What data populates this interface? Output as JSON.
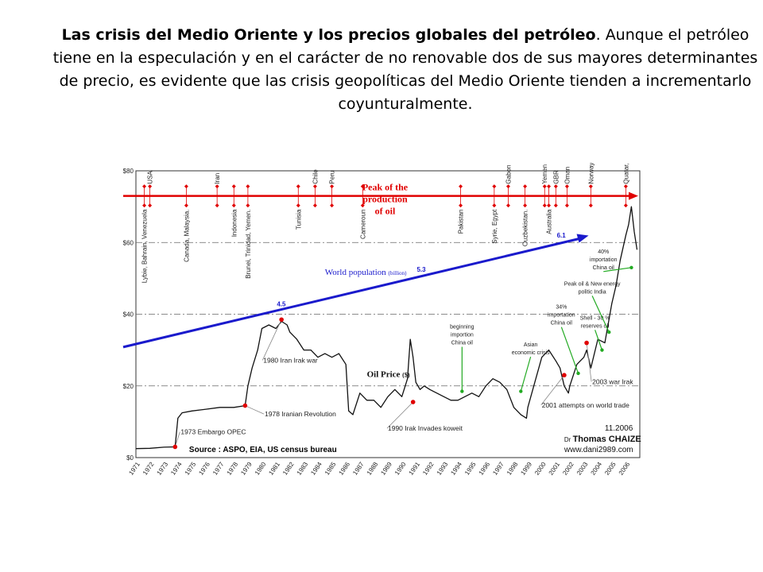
{
  "caption": {
    "bold": "Las crisis del Medio Oriente y los precios globales del petróleo",
    "rest": ". Aunque el petróleo tiene en la especulación y en el carácter de no renovable dos de sus mayores determinantes de precio, es evidente que las crisis geopolíticas del Medio Oriente tienden a incrementarlo coyunturalmente."
  },
  "chart_data": {
    "type": "line",
    "ylim": [
      0,
      80
    ],
    "xlim": [
      1971,
      2007
    ],
    "y_ticks": [
      "$0",
      "$20",
      "$40",
      "$60",
      "$80"
    ],
    "x_ticks": [
      "1971",
      "1972",
      "1973",
      "1974",
      "1975",
      "1976",
      "1977",
      "1978",
      "1979",
      "1980",
      "1981",
      "1982",
      "1983",
      "1984",
      "1985",
      "1986",
      "1987",
      "1988",
      "1989",
      "1990",
      "1991",
      "1992",
      "1993",
      "1994",
      "1995",
      "1996",
      "1997",
      "1998",
      "1999",
      "2000",
      "2001",
      "2002",
      "2003",
      "2004",
      "2005",
      "2006"
    ],
    "grid": "dashed horizontal at $20, $40, $60",
    "colors": {
      "price": "#111111",
      "population": "#1a1acc",
      "peak": "#e00000",
      "event": "#e00000",
      "green": "#22aa22"
    },
    "series": [
      {
        "name": "Oil Price",
        "unit": "($)",
        "x": [
          1971,
          1972,
          1973,
          1973.8,
          1974,
          1974.3,
          1975,
          1976,
          1977,
          1978,
          1978.8,
          1979,
          1979.3,
          1979.7,
          1980,
          1980.5,
          1981,
          1981.4,
          1981.8,
          1982,
          1982.5,
          1983,
          1983.5,
          1984,
          1984.5,
          1985,
          1985.5,
          1986,
          1986.2,
          1986.5,
          1987,
          1987.5,
          1988,
          1988.5,
          1989,
          1989.5,
          1990,
          1990.4,
          1990.6,
          1990.8,
          1991,
          1991.3,
          1991.6,
          1992,
          1992.5,
          1993,
          1993.5,
          1994,
          1994.5,
          1995,
          1995.5,
          1996,
          1996.5,
          1997,
          1997.5,
          1998,
          1998.5,
          1998.9,
          1999,
          1999.5,
          2000,
          2000.5,
          2001,
          2001.3,
          2001.6,
          2001.9,
          2002,
          2002.5,
          2003,
          2003.2,
          2003.5,
          2004,
          2004.5,
          2005,
          2005.3,
          2005.6,
          2006,
          2006.2,
          2006.4,
          2006.6,
          2006.8
        ],
        "y": [
          2.5,
          2.6,
          2.9,
          3.0,
          11,
          12.5,
          13,
          13.5,
          14,
          14,
          14.5,
          20,
          25,
          30,
          36,
          37,
          36,
          38,
          37,
          35,
          33,
          30,
          30,
          28,
          29,
          28,
          29,
          26,
          13,
          12,
          18,
          16,
          16,
          14,
          17,
          19,
          17,
          22,
          33,
          28,
          21,
          19,
          20,
          19,
          18,
          17,
          16,
          16,
          17,
          18,
          17,
          20,
          22,
          21,
          19,
          14,
          12,
          11,
          14,
          21,
          28,
          30,
          27,
          25,
          20,
          18,
          20,
          26,
          28,
          30,
          25,
          33,
          32,
          43,
          48,
          55,
          62,
          65,
          70,
          63,
          58
        ]
      },
      {
        "name": "World population",
        "unit": "(billion)",
        "x": [
          1971,
          1981.5,
          1991.5,
          2001.5,
          2003
        ],
        "y": [
          31.5,
          39.8,
          50.5,
          59.8,
          61.5
        ],
        "labels": [
          {
            "x": 1981.5,
            "text": "4.5"
          },
          {
            "x": 1991.5,
            "text": "5.3"
          },
          {
            "x": 2001.5,
            "text": "6.1"
          }
        ]
      }
    ],
    "peak_line": {
      "y": 73,
      "label": [
        "Peak of the",
        "production",
        "of oil"
      ]
    },
    "countries_top": [
      {
        "x": 1972,
        "text": "USA"
      },
      {
        "x": 1976.8,
        "text": "Iran"
      },
      {
        "x": 1983.8,
        "text": "Chile"
      },
      {
        "x": 1985,
        "text": "Peru"
      },
      {
        "x": 1997.6,
        "text": "Gabon"
      },
      {
        "x": 2000.2,
        "text": "Yemen"
      },
      {
        "x": 2001,
        "text": "GBR"
      },
      {
        "x": 2001.8,
        "text": "Oman"
      },
      {
        "x": 2003.5,
        "text": "Norway, China, Mexico"
      },
      {
        "x": 2006,
        "text": "Quatar, India Malaysia"
      }
    ],
    "countries_bottom": [
      {
        "x": 1971.6,
        "text": "Lybie, Bahrain, Venezuela"
      },
      {
        "x": 1974.6,
        "text": "Canada, Malaysia."
      },
      {
        "x": 1978,
        "text": "Indonesia"
      },
      {
        "x": 1979,
        "text": "Brunei, Trinidad, Yemen."
      },
      {
        "x": 1982.6,
        "text": "Tunisia"
      },
      {
        "x": 1987.2,
        "text": "Cameroun"
      },
      {
        "x": 1994.2,
        "text": "Pakistan"
      },
      {
        "x": 1996.6,
        "text": "Syrie, Egypt"
      },
      {
        "x": 1998.8,
        "text": "Ouzbekistan."
      },
      {
        "x": 2000.5,
        "text": "Australia"
      }
    ],
    "events": [
      {
        "x": 1973.8,
        "y": 3.0,
        "text": "1973 Embargo OPEC"
      },
      {
        "x": 1978.8,
        "y": 14.5,
        "text": "1978 Iranian Revolution"
      },
      {
        "x": 1981.4,
        "y": 38.5,
        "text": "1980 Iran Irak war"
      },
      {
        "x": 1990.8,
        "y": 15.5,
        "text": "1990 Irak Invades koweit"
      },
      {
        "x": 2001.6,
        "y": 23,
        "text": "2001 attempts on world trade"
      },
      {
        "x": 2003.2,
        "y": 32,
        "text": "2003 war Irak"
      }
    ],
    "green_notes": [
      {
        "x": 1994.3,
        "y": 18.5,
        "lines": [
          "beginning",
          "importion",
          "China oil"
        ]
      },
      {
        "x": 1998.5,
        "y": 18.5,
        "lines": [
          "Asian",
          "economic crisis"
        ]
      },
      {
        "x": 2002.6,
        "y": 23.5,
        "lines": [
          "34%",
          "importation",
          "China oil"
        ]
      },
      {
        "x": 2004.3,
        "y": 30,
        "lines": [
          "Shell - 30 %",
          "reserves oil"
        ]
      },
      {
        "x": 2004.8,
        "y": 35,
        "lines": [
          "Peak oil & New energy",
          "politic India"
        ]
      },
      {
        "x": 2006.4,
        "y": 53,
        "lines": [
          "40%",
          "importation",
          "China oil"
        ]
      }
    ],
    "date_label": "11.2006",
    "source": "Source : ASPO, EIA, US census bureau",
    "author": "Dr Thomas CHAIZE",
    "website": "www.dani2989.com"
  }
}
